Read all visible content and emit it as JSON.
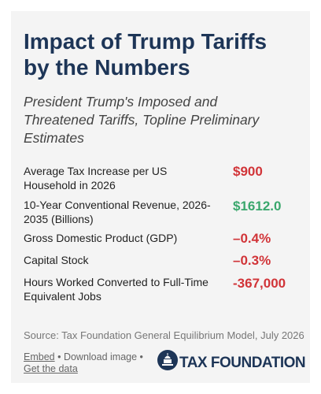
{
  "header": {
    "title": "Impact of Trump Tariffs by the Numbers",
    "subtitle": "President Trump's Imposed and Threatened Tariffs, Topline Preliminary Estimates"
  },
  "table": {
    "rows": [
      [
        "Average Tax Increase per US Household in 2026",
        "$900"
      ],
      [
        "10-Year Conventional Revenue, 2026-2035 (Billions)",
        "$1612.0"
      ],
      [
        "Gross Domestic Product (GDP)",
        "–0.4%"
      ],
      [
        "Capital Stock",
        "–0.3%"
      ],
      [
        "Hours Worked Converted to Full-Time Equivalent Jobs",
        "-367,000"
      ]
    ]
  },
  "footer": {
    "source": "Source: Tax Foundation General Equilibrium Model, July 2026",
    "links": [
      "Embed",
      "• Download image •",
      "Get the data"
    ],
    "logo": "TAX FOUNDATION"
  }
}
